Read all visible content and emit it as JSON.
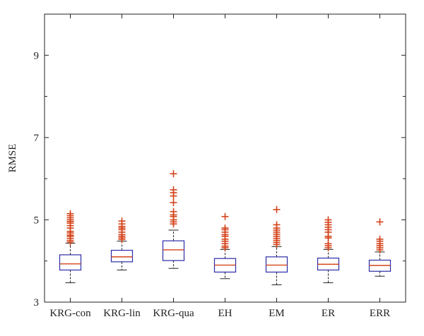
{
  "chart_data": {
    "type": "box",
    "title": "",
    "xlabel": "",
    "ylabel": "RMSE",
    "ylim": [
      3,
      10
    ],
    "yticks": [
      3,
      5,
      7,
      9
    ],
    "grid": false,
    "colors": {
      "box": "#2b2ba8",
      "median": "#d4441c",
      "outlier": "#d4441c",
      "whisker": "#222222"
    },
    "categories": [
      "KRG-con",
      "KRG-lin",
      "KRG-qua",
      "EH",
      "EM",
      "ER",
      "ERR"
    ],
    "boxes": [
      {
        "category": "KRG-con",
        "whisker_low": 3.47,
        "q1": 3.78,
        "median": 3.93,
        "q3": 4.15,
        "whisker_high": 4.43,
        "outliers": [
          4.46,
          4.5,
          4.55,
          4.6,
          4.63,
          4.68,
          4.72,
          4.8,
          4.86,
          4.92,
          4.96,
          5.0,
          5.05,
          5.1,
          5.15
        ]
      },
      {
        "category": "KRG-lin",
        "whisker_low": 3.78,
        "q1": 3.98,
        "median": 4.1,
        "q3": 4.26,
        "whisker_high": 4.48,
        "outliers": [
          4.52,
          4.56,
          4.6,
          4.64,
          4.7,
          4.76,
          4.8,
          4.84,
          4.9,
          4.97
        ]
      },
      {
        "category": "KRG-qua",
        "whisker_low": 3.82,
        "q1": 4.01,
        "median": 4.27,
        "q3": 4.49,
        "whisker_high": 4.75,
        "outliers": [
          4.9,
          4.95,
          5.0,
          5.08,
          5.12,
          5.2,
          5.42,
          5.58,
          5.66,
          5.73,
          6.12
        ]
      },
      {
        "category": "EH",
        "whisker_low": 3.57,
        "q1": 3.73,
        "median": 3.9,
        "q3": 4.06,
        "whisker_high": 4.28,
        "outliers": [
          4.32,
          4.36,
          4.42,
          4.48,
          4.53,
          4.6,
          4.64,
          4.7,
          4.76,
          4.8,
          5.08
        ]
      },
      {
        "category": "EM",
        "whisker_low": 3.42,
        "q1": 3.73,
        "median": 3.9,
        "q3": 4.1,
        "whisker_high": 4.35,
        "outliers": [
          4.4,
          4.45,
          4.5,
          4.55,
          4.6,
          4.65,
          4.7,
          4.75,
          4.8,
          4.88,
          5.25
        ]
      },
      {
        "category": "ER",
        "whisker_low": 3.47,
        "q1": 3.78,
        "median": 3.92,
        "q3": 4.07,
        "whisker_high": 4.28,
        "outliers": [
          4.32,
          4.37,
          4.42,
          4.56,
          4.6,
          4.7,
          4.76,
          4.82,
          4.88,
          4.94,
          5.0
        ]
      },
      {
        "category": "ERR",
        "whisker_low": 3.63,
        "q1": 3.75,
        "median": 3.89,
        "q3": 4.02,
        "whisker_high": 4.22,
        "outliers": [
          4.27,
          4.32,
          4.37,
          4.42,
          4.48,
          4.53,
          4.95
        ]
      }
    ]
  }
}
